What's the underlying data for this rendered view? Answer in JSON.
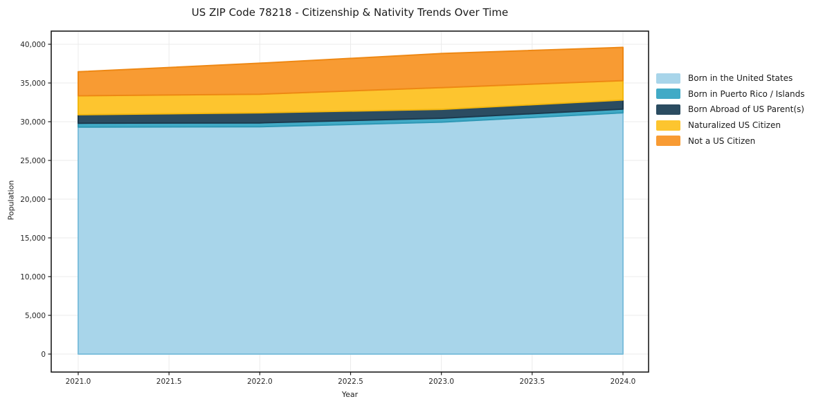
{
  "chart_data": {
    "type": "area",
    "stacked": true,
    "title": "US ZIP Code 78218 - Citizenship & Nativity Trends Over Time",
    "xlabel": "Year",
    "ylabel": "Population",
    "x": [
      2021,
      2022,
      2023,
      2024
    ],
    "series": [
      {
        "name": "Born in the United States",
        "values": [
          29300,
          29350,
          29950,
          31150
        ],
        "fill": "#A8D5EA",
        "edge": "#7EBFDC"
      },
      {
        "name": "Born in Puerto Rico / Islands",
        "values": [
          500,
          500,
          500,
          480
        ],
        "fill": "#41AAC6",
        "edge": "#2E98B5"
      },
      {
        "name": "Born Abroad of US Parent(s)",
        "values": [
          1100,
          1300,
          1150,
          1170
        ],
        "fill": "#2B4C61",
        "edge": "#1C3A4E"
      },
      {
        "name": "Naturalized US Citizen",
        "values": [
          2450,
          2400,
          2800,
          2500
        ],
        "fill": "#FDC52F",
        "edge": "#F3B70E"
      },
      {
        "name": "Not a US Citizen",
        "values": [
          3100,
          4000,
          4400,
          4300
        ],
        "fill": "#F89B33",
        "edge": "#EE8814"
      }
    ],
    "xlim": [
      2021,
      2024
    ],
    "ylim": [
      0,
      40000
    ],
    "x_ticks": {
      "values": [
        2021.0,
        2021.5,
        2022.0,
        2022.5,
        2023.0,
        2023.5,
        2024.0
      ],
      "labels": [
        "2021.0",
        "2021.5",
        "2022.0",
        "2022.5",
        "2023.0",
        "2023.5",
        "2024.0"
      ]
    },
    "y_ticks": {
      "values": [
        0,
        5000,
        10000,
        15000,
        20000,
        25000,
        30000,
        35000,
        40000
      ],
      "labels": [
        "0",
        "5,000",
        "10,000",
        "15,000",
        "20,000",
        "25,000",
        "30,000",
        "35,000",
        "40,000"
      ]
    },
    "grid": true,
    "grid_color": "#ebebeb",
    "spine_color": "#1a1a1a",
    "legend_position": "center right outside"
  }
}
